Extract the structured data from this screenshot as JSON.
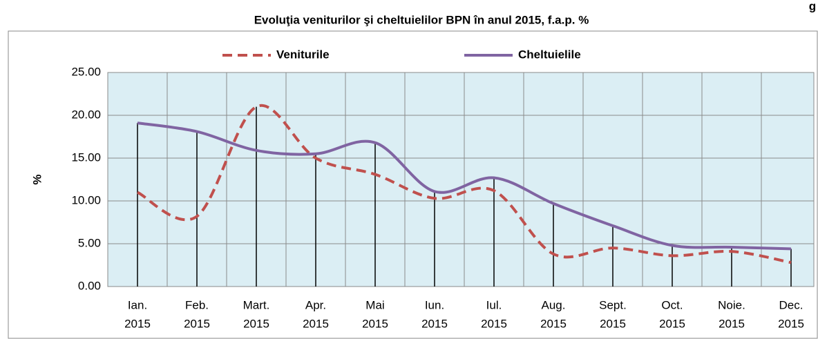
{
  "corner_text": "g",
  "chart_data": {
    "type": "line",
    "title": "Evoluţia veniturilor şi cheltuielilor BPN în anul 2015, f.a.p. %",
    "y_label": "%",
    "categories": [
      [
        "Ian.",
        "2015"
      ],
      [
        "Feb.",
        "2015"
      ],
      [
        "Mart.",
        "2015"
      ],
      [
        "Apr.",
        "2015"
      ],
      [
        "Mai",
        "2015"
      ],
      [
        "Iun.",
        "2015"
      ],
      [
        "Iul.",
        "2015"
      ],
      [
        "Aug.",
        "2015"
      ],
      [
        "Sept.",
        "2015"
      ],
      [
        "Oct.",
        "2015"
      ],
      [
        "Noie.",
        "2015"
      ],
      [
        "Dec.",
        "2015"
      ]
    ],
    "series": [
      {
        "name": "Veniturile",
        "color": "#c0504d",
        "dashed": true,
        "values": [
          11.0,
          8.2,
          21.0,
          15.0,
          13.1,
          10.3,
          11.2,
          3.8,
          4.5,
          3.6,
          4.1,
          2.8
        ]
      },
      {
        "name": "Cheltuielile",
        "color": "#8064a2",
        "dashed": false,
        "values": [
          19.1,
          18.1,
          15.9,
          15.5,
          16.8,
          11.1,
          12.7,
          9.7,
          7.1,
          4.8,
          4.6,
          4.4
        ]
      }
    ],
    "ylim": [
      0,
      25
    ],
    "yticks": [
      {
        "value": 0,
        "label": "0.00"
      },
      {
        "value": 5,
        "label": "5.00"
      },
      {
        "value": 10,
        "label": "10.00"
      },
      {
        "value": 15,
        "label": "15.00"
      },
      {
        "value": 20,
        "label": "20.00"
      },
      {
        "value": 25,
        "label": "25.00"
      }
    ],
    "grid": true,
    "drop_lines": true
  }
}
